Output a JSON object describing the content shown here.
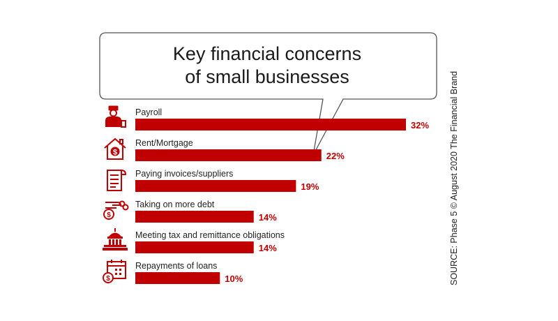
{
  "chart_data": {
    "type": "bar",
    "orientation": "horizontal",
    "title": [
      "Key financial concerns",
      "of small businesses"
    ],
    "categories": [
      "Payroll",
      "Rent/Mortgage",
      "Paying invoices/suppliers",
      "Taking on more debt",
      "Meeting tax and remittance obligations",
      "Repayments of loans"
    ],
    "values": [
      32,
      22,
      19,
      14,
      14,
      10
    ],
    "value_labels": [
      "32%",
      "22%",
      "19%",
      "14%",
      "14%",
      "10%"
    ],
    "icons": [
      "payroll-person-icon",
      "house-dollar-icon",
      "invoice-document-icon",
      "debt-hand-chain-icon",
      "capitol-building-icon",
      "calendar-dollar-icon"
    ],
    "xlim": [
      0,
      32
    ],
    "bar_color": "#c00000",
    "icon_color": "#c00000",
    "grid": false,
    "legend": "none"
  },
  "source": "SOURCE: Phase 5 © August 2020 The Financial Brand"
}
